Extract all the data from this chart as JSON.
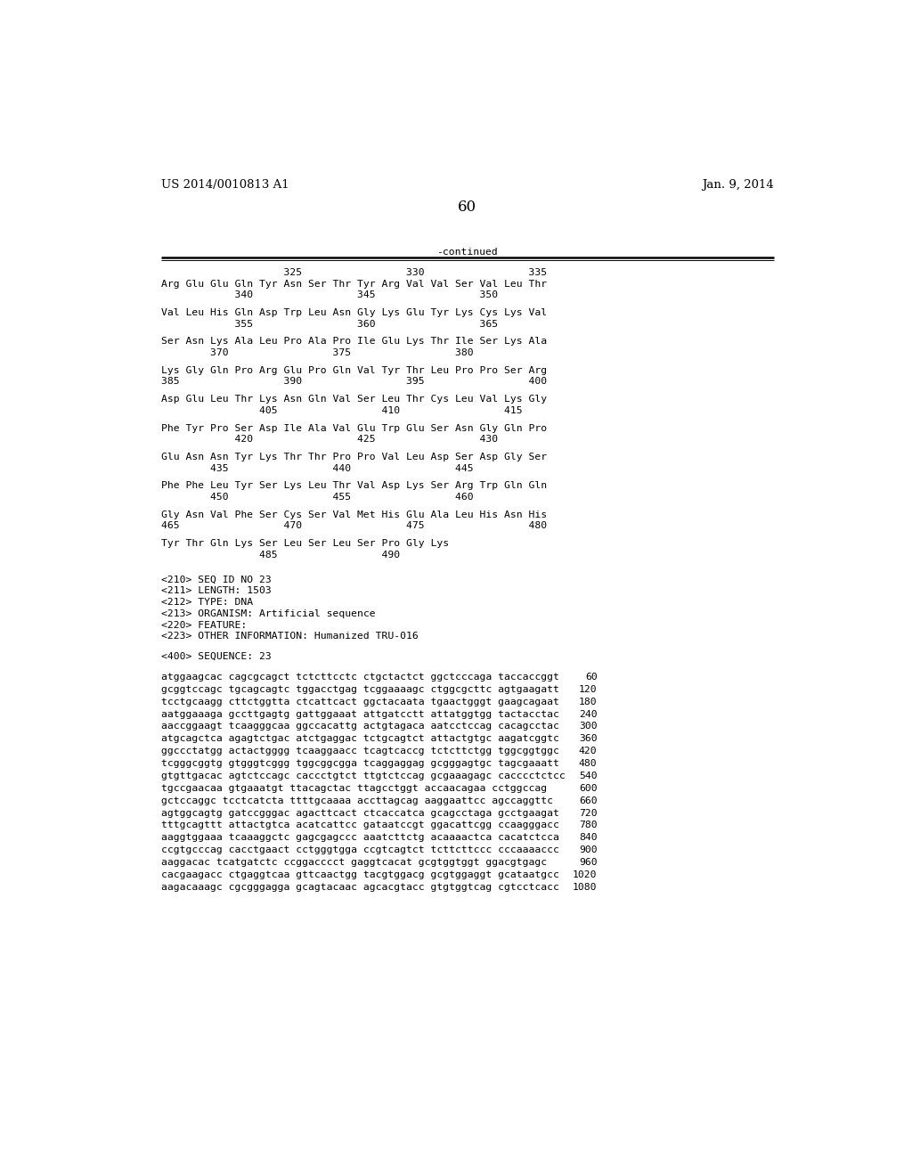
{
  "header_left": "US 2014/0010813 A1",
  "header_right": "Jan. 9, 2014",
  "page_number": "60",
  "continued_label": "-continued",
  "background_color": "#ffffff",
  "text_color": "#000000",
  "aa_content": [
    "                    325                 330                 335",
    "Arg Glu Glu Gln Tyr Asn Ser Thr Tyr Arg Val Val Ser Val Leu Thr",
    "            340                 345                 350",
    "",
    "Val Leu His Gln Asp Trp Leu Asn Gly Lys Glu Tyr Lys Cys Lys Val",
    "            355                 360                 365",
    "",
    "Ser Asn Lys Ala Leu Pro Ala Pro Ile Glu Lys Thr Ile Ser Lys Ala",
    "        370                 375                 380",
    "",
    "Lys Gly Gln Pro Arg Glu Pro Gln Val Tyr Thr Leu Pro Pro Ser Arg",
    "385                 390                 395                 400",
    "",
    "Asp Glu Leu Thr Lys Asn Gln Val Ser Leu Thr Cys Leu Val Lys Gly",
    "                405                 410                 415",
    "",
    "Phe Tyr Pro Ser Asp Ile Ala Val Glu Trp Glu Ser Asn Gly Gln Pro",
    "            420                 425                 430",
    "",
    "Glu Asn Asn Tyr Lys Thr Thr Pro Pro Val Leu Asp Ser Asp Gly Ser",
    "        435                 440                 445",
    "",
    "Phe Phe Leu Tyr Ser Lys Leu Thr Val Asp Lys Ser Arg Trp Gln Gln",
    "        450                 455                 460",
    "",
    "Gly Asn Val Phe Ser Cys Ser Val Met His Glu Ala Leu His Asn His",
    "465                 470                 475                 480",
    "",
    "Tyr Thr Gln Lys Ser Leu Ser Leu Ser Pro Gly Lys",
    "                485                 490"
  ],
  "metadata_lines": [
    "<210> SEQ ID NO 23",
    "<211> LENGTH: 1503",
    "<212> TYPE: DNA",
    "<213> ORGANISM: Artificial sequence",
    "<220> FEATURE:",
    "<223> OTHER INFORMATION: Humanized TRU-016"
  ],
  "sequence_label": "<400> SEQUENCE: 23",
  "dna_lines": [
    {
      "seq": "atggaagcac cagcgcagct tctcttcctc ctgctactct ggctcccaga taccaccggt",
      "num": "60"
    },
    {
      "seq": "gcggtccagc tgcagcagtc tggacctgag tcggaaaagc ctggcgcttc agtgaagatt",
      "num": "120"
    },
    {
      "seq": "tcctgcaagg cttctggtta ctcattcact ggctacaata tgaactgggt gaagcagaat",
      "num": "180"
    },
    {
      "seq": "aatggaaaga gccttgagtg gattggaaat attgatcctt attatggtgg tactacctac",
      "num": "240"
    },
    {
      "seq": "aaccggaagt tcaagggcaa ggccacattg actgtagaca aatcctccag cacagcctac",
      "num": "300"
    },
    {
      "seq": "atgcagctca agagtctgac atctgaggac tctgcagtct attactgtgc aagatcggtc",
      "num": "360"
    },
    {
      "seq": "ggccctatgg actactgggg tcaaggaacc tcagtcaccg tctcttctgg tggcggtggc",
      "num": "420"
    },
    {
      "seq": "tcgggcggtg gtgggtcggg tggcggcgga tcaggaggag gcgggagtgc tagcgaaatt",
      "num": "480"
    },
    {
      "seq": "gtgttgacac agtctccagc caccctgtct ttgtctccag gcgaaagagc cacccctctcc",
      "num": "540"
    },
    {
      "seq": "tgccgaacaa gtgaaatgt ttacagctac ttagcctggt accaacagaa cctggccag",
      "num": "600"
    },
    {
      "seq": "gctccaggc tcctcatcta ttttgcaaaa accttagcag aaggaattcc agccaggttc",
      "num": "660"
    },
    {
      "seq": "agtggcagtg gatccgggac agacttcact ctcaccatca gcagcctaga gcctgaagat",
      "num": "720"
    },
    {
      "seq": "tttgcagttt attactgtca acatcattcc gataatccgt ggacattcgg ccaagggacc",
      "num": "780"
    },
    {
      "seq": "aaggtggaaa tcaaaggctc gagcgagccc aaatcttctg acaaaactca cacatctcca",
      "num": "840"
    },
    {
      "seq": "ccgtgcccag cacctgaact cctgggtgga ccgtcagtct tcttcttccc cccaaaaccc",
      "num": "900"
    },
    {
      "seq": "aaggacac tcatgatctc ccggacccct gaggtcacat gcgtggtggt ggacgtgagc",
      "num": "960"
    },
    {
      "seq": "cacgaagacc ctgaggtcaa gttcaactgg tacgtggacg gcgtggaggt gcataatgcc",
      "num": "1020"
    },
    {
      "seq": "aagacaaagc cgcgggagga gcagtacaac agcacgtacc gtgtggtcag cgtcctcacc",
      "num": "1080"
    }
  ]
}
